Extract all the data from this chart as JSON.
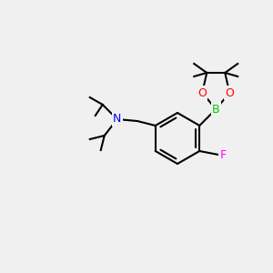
{
  "background_color": "#f0f0f0",
  "bond_color": "#000000",
  "bond_width": 1.5,
  "atom_colors": {
    "B": "#00cc00",
    "O": "#ff0000",
    "N": "#0000ff",
    "F": "#ff00ff",
    "C": "#000000"
  },
  "font_size": 9,
  "font_size_small": 7
}
